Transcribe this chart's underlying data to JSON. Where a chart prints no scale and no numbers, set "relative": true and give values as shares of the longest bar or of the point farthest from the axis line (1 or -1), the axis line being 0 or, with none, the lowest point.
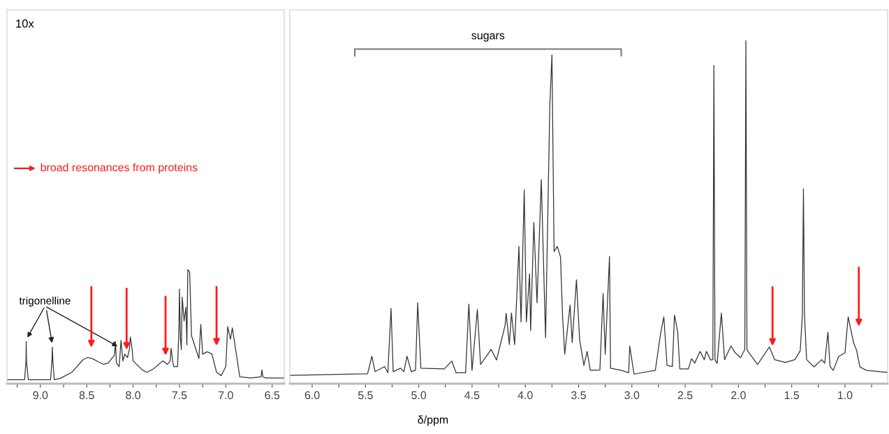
{
  "chart_data": [
    {
      "type": "line",
      "relative": true,
      "tick_labels": "x",
      "xlim": [
        9.36,
        6.37
      ],
      "xticks": [
        {
          "value": 9.25,
          "label": null
        },
        {
          "value": 9,
          "label": "9.0"
        },
        {
          "value": 8.75,
          "label": null
        },
        8.5,
        {
          "value": 8.25,
          "label": null
        },
        {
          "value": 8,
          "label": "8.0"
        },
        {
          "value": 7.75,
          "label": null
        },
        7.5,
        {
          "value": 7.25,
          "label": null
        },
        {
          "value": 7,
          "label": "7.0"
        },
        {
          "value": 6.75,
          "label": null
        },
        6.5
      ],
      "x": [
        9.36,
        9.17,
        9.155,
        9.153,
        9.15,
        9.13,
        8.89,
        8.875,
        8.87,
        8.865,
        8.85,
        8.79,
        8.66,
        8.54,
        8.49,
        8.44,
        8.37,
        8.32,
        8.27,
        8.2,
        8.19,
        8.18,
        8.15,
        8.13,
        8.11,
        8.09,
        8.06,
        8.04,
        8.03,
        8.01,
        8.0,
        7.9,
        7.85,
        7.78,
        7.68,
        7.63,
        7.6,
        7.59,
        7.57,
        7.56,
        7.52,
        7.505,
        7.5,
        7.49,
        7.48,
        7.47,
        7.45,
        7.43,
        7.42,
        7.41,
        7.39,
        7.37,
        7.33,
        7.29,
        7.27,
        7.25,
        7.2,
        7.15,
        7.1,
        7.05,
        7.0,
        6.98,
        6.95,
        6.93,
        6.89,
        6.85,
        6.73,
        6.62,
        6.61,
        6.6,
        6.57,
        6.37
      ],
      "series": [
        {
          "color": "#333333",
          "values": [
            0.035,
            0.035,
            0.2,
            0.37,
            0.2,
            0.035,
            0.035,
            0.2,
            0.32,
            0.2,
            0.035,
            0.045,
            0.1,
            0.21,
            0.23,
            0.22,
            0.19,
            0.17,
            0.18,
            0.25,
            0.37,
            0.18,
            0.15,
            0.38,
            0.2,
            0.26,
            0.23,
            0.3,
            0.41,
            0.3,
            0.2,
            0.12,
            0.1,
            0.13,
            0.2,
            0.17,
            0.2,
            0.31,
            0.18,
            0.15,
            0.15,
            0.5,
            0.83,
            0.4,
            0.3,
            0.76,
            0.55,
            0.67,
            0.34,
            1.0,
            0.98,
            0.42,
            0.32,
            0.22,
            0.52,
            0.26,
            0.28,
            0.26,
            0.1,
            0.07,
            0.15,
            0.5,
            0.39,
            0.49,
            0.28,
            0.06,
            0.05,
            0.06,
            0.12,
            0.06,
            0.05,
            0.05
          ]
        }
      ],
      "annotations": [
        "10x",
        "broad resonances from proteins",
        {
          "text": "trigonelline",
          "x": 8.87,
          "y": 0.32
        }
      ]
    },
    {
      "type": "line",
      "relative": true,
      "tick_labels": "x",
      "xlim": [
        6.21,
        0.6
      ],
      "xlabel": "δ/ppm",
      "xticks": [
        {
          "value": 6,
          "label": "6.0"
        },
        {
          "value": 5.75,
          "label": null
        },
        5.5,
        {
          "value": 5.25,
          "label": null
        },
        {
          "value": 5,
          "label": "5.0"
        },
        {
          "value": 4.75,
          "label": null
        },
        4.5,
        {
          "value": 4.25,
          "label": null
        },
        {
          "value": 4,
          "label": "4.0"
        },
        {
          "value": 3.75,
          "label": null
        },
        3.5,
        {
          "value": 3.25,
          "label": null
        },
        {
          "value": 3,
          "label": "3.0"
        },
        {
          "value": 2.75,
          "label": null
        },
        2.5,
        {
          "value": 2.25,
          "label": null
        },
        {
          "value": 2,
          "label": "2.0"
        },
        {
          "value": 1.75,
          "label": null
        },
        1.5,
        {
          "value": 1.25,
          "label": null
        },
        {
          "value": 1,
          "label": "1.0"
        },
        {
          "value": 0.75,
          "label": null
        }
      ],
      "x": [
        6.21,
        5.48,
        5.44,
        5.41,
        5.32,
        5.29,
        5.26,
        5.24,
        5.17,
        5.14,
        5.11,
        5.07,
        5.03,
        5.01,
        4.98,
        4.76,
        4.69,
        4.65,
        4.56,
        4.53,
        4.5,
        4.45,
        4.42,
        4.32,
        4.27,
        4.19,
        4.18,
        4.15,
        4.13,
        4.1,
        4.06,
        4.04,
        4.01,
        3.99,
        3.96,
        3.95,
        3.92,
        3.89,
        3.85,
        3.81,
        3.77,
        3.75,
        3.73,
        3.7,
        3.67,
        3.65,
        3.63,
        3.58,
        3.56,
        3.52,
        3.49,
        3.45,
        3.42,
        3.39,
        3.3,
        3.27,
        3.25,
        3.21,
        3.2,
        3.1,
        3.03,
        3.02,
        2.98,
        2.78,
        2.73,
        2.7,
        2.67,
        2.62,
        2.6,
        2.57,
        2.55,
        2.47,
        2.44,
        2.41,
        2.36,
        2.32,
        2.3,
        2.26,
        2.24,
        2.23,
        2.22,
        2.2,
        2.16,
        2.13,
        2.07,
        2.03,
        1.98,
        1.94,
        1.93,
        1.92,
        1.91,
        1.82,
        1.71,
        1.66,
        1.56,
        1.47,
        1.42,
        1.4,
        1.39,
        1.38,
        1.36,
        1.29,
        1.22,
        1.19,
        1.16,
        1.14,
        1.11,
        1.06,
        1.0,
        0.97,
        0.92,
        0.89,
        0.86,
        0.8,
        0.6
      ],
      "series": [
        {
          "color": "#333333",
          "values": [
            0.024,
            0.029,
            0.08,
            0.035,
            0.05,
            0.032,
            0.22,
            0.035,
            0.045,
            0.035,
            0.08,
            0.035,
            0.04,
            0.236,
            0.045,
            0.043,
            0.066,
            0.032,
            0.032,
            0.232,
            0.039,
            0.216,
            0.056,
            0.1,
            0.069,
            0.17,
            0.205,
            0.114,
            0.206,
            0.114,
            0.4,
            0.18,
            0.565,
            0.18,
            0.32,
            0.155,
            0.47,
            0.236,
            0.595,
            0.134,
            0.81,
            0.959,
            0.385,
            0.4,
            0.37,
            0.195,
            0.086,
            0.229,
            0.12,
            0.303,
            0.127,
            0.053,
            0.094,
            0.039,
            0.04,
            0.263,
            0.086,
            0.371,
            0.045,
            0.039,
            0.032,
            0.11,
            0.028,
            0.039,
            0.147,
            0.195,
            0.053,
            0.05,
            0.2,
            0.15,
            0.043,
            0.043,
            0.073,
            0.06,
            0.094,
            0.07,
            0.094,
            0.069,
            0.07,
            0.928,
            0.07,
            0.059,
            0.206,
            0.07,
            0.11,
            0.09,
            0.076,
            0.1,
            1.0,
            0.1,
            0.094,
            0.056,
            0.107,
            0.07,
            0.062,
            0.07,
            0.096,
            0.2,
            0.568,
            0.2,
            0.07,
            0.049,
            0.07,
            0.06,
            0.15,
            0.05,
            0.039,
            0.079,
            0.09,
            0.195,
            0.12,
            0.096,
            0.049,
            0.039,
            0.033
          ]
        }
      ],
      "annotations": [
        "sugars"
      ]
    }
  ]
}
